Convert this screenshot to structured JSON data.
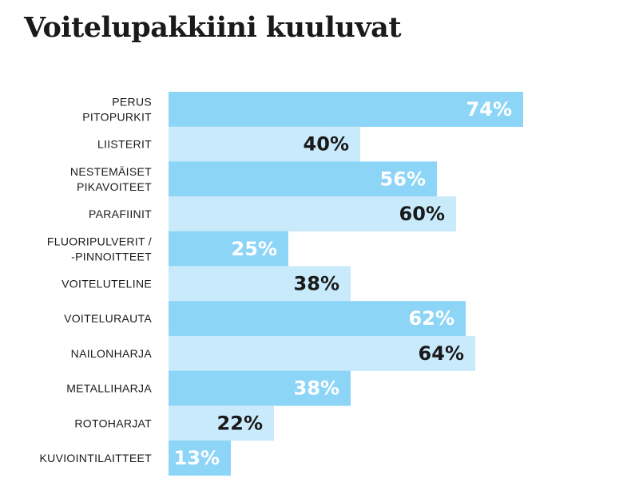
{
  "chart_data": {
    "type": "bar",
    "orientation": "horizontal",
    "title": "Voitelupakkiini kuuluvat",
    "categories": [
      "PERUS\nPITOPURKIT",
      "LIISTERIT",
      "NESTEMÄISET\nPIKAVOITEET",
      "PARAFIINIT",
      "FLUORIPULVERIT /\n-PINNOITTEET",
      "VOITELUTELINE",
      "VOITELURAUTA",
      "NAILONHARJA",
      "METALLIHARJA",
      "ROTOHARJAT",
      "KUVIOINTILAITTEET"
    ],
    "values": [
      74,
      40,
      56,
      60,
      25,
      38,
      62,
      64,
      38,
      22,
      13
    ],
    "value_labels": [
      "74%",
      "40%",
      "56%",
      "60%",
      "25%",
      "38%",
      "62%",
      "64%",
      "38%",
      "22%",
      "13%"
    ],
    "unit": "%",
    "xlim": [
      0,
      100
    ],
    "grid": false,
    "legend": "none",
    "colors": {
      "bar_dark": "#8dd5f7",
      "bar_light": "#c9eafb",
      "label_on_dark": "#ffffff",
      "label_on_light": "#1a1a1a"
    }
  }
}
